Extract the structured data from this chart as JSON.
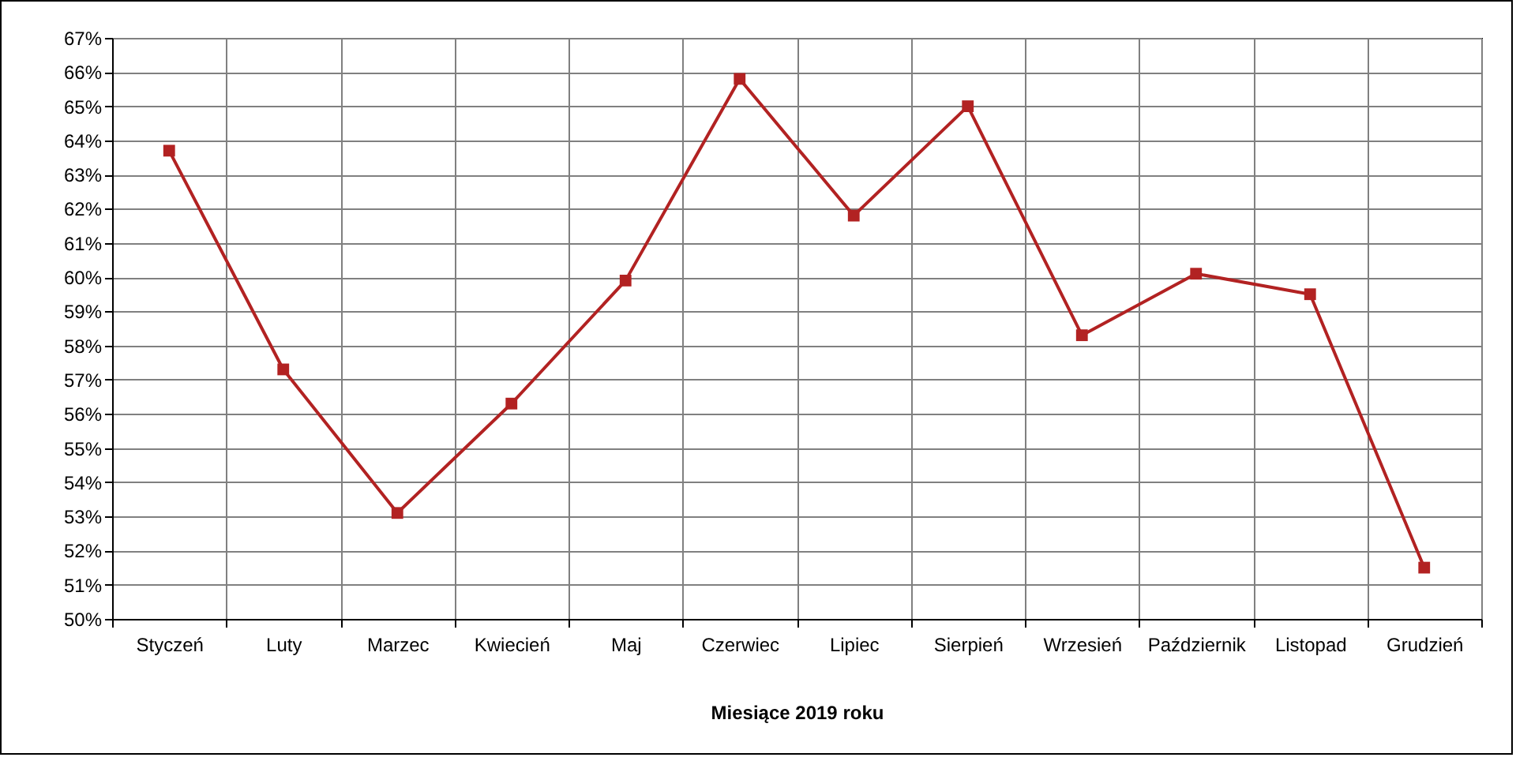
{
  "chart_data": {
    "type": "line",
    "xlabel": "Miesiące 2019  roku",
    "categories": [
      "Styczeń",
      "Luty",
      "Marzec",
      "Kwiecień",
      "Maj",
      "Czerwiec",
      "Lipiec",
      "Sierpień",
      "Wrzesień",
      "Październik",
      "Listopad",
      "Grudzień"
    ],
    "series": [
      {
        "color": "#b22222",
        "values": [
          63.7,
          57.3,
          53.1,
          56.3,
          59.9,
          65.8,
          61.8,
          65.0,
          58.3,
          60.1,
          59.5,
          51.5
        ]
      }
    ],
    "ylim": [
      50,
      67
    ],
    "yticks": [
      {
        "value": 50,
        "label": "50%"
      },
      {
        "value": 51,
        "label": "51%"
      },
      {
        "value": 52,
        "label": "52%"
      },
      {
        "value": 53,
        "label": "53%"
      },
      {
        "value": 54,
        "label": "54%"
      },
      {
        "value": 55,
        "label": "55%"
      },
      {
        "value": 56,
        "label": "56%"
      },
      {
        "value": 57,
        "label": "57%"
      },
      {
        "value": 58,
        "label": "58%"
      },
      {
        "value": 59,
        "label": "59%"
      },
      {
        "value": 60,
        "label": "60%"
      },
      {
        "value": 61,
        "label": "61%"
      },
      {
        "value": 62,
        "label": "62%"
      },
      {
        "value": 63,
        "label": "63%"
      },
      {
        "value": 64,
        "label": "64%"
      },
      {
        "value": 65,
        "label": "65%"
      },
      {
        "value": 66,
        "label": "66%"
      },
      {
        "value": 67,
        "label": "67%"
      }
    ],
    "grid": true,
    "marker": "square",
    "line_style": "solid"
  }
}
